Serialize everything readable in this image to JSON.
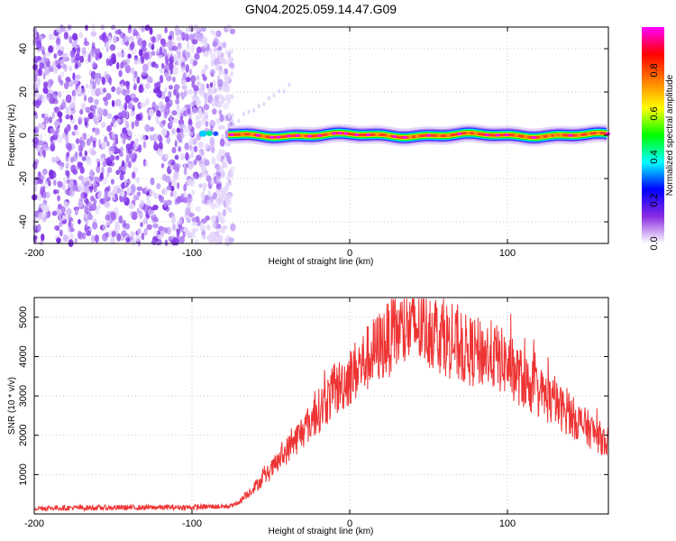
{
  "title": "GN04.2025.059.14.47.G09",
  "chart_data": [
    {
      "type": "heatmap",
      "xlabel": "Height of straight line (km)",
      "ylabel": "Frequency (Hz)",
      "colorbar_label": "Normalized spectral amplitude",
      "xlim": [
        -200,
        164
      ],
      "ylim": [
        -50,
        50
      ],
      "x_ticks": [
        -200,
        -100,
        0,
        100
      ],
      "y_ticks": [
        -40,
        -20,
        0,
        20,
        40
      ],
      "colorbar_range": [
        0.0,
        1.0
      ],
      "colorbar_ticks": [
        0.0,
        0.2,
        0.4,
        0.6,
        0.8
      ],
      "colormap": [
        "#ffffff",
        "#8a2be2",
        "#0000ff",
        "#00ffff",
        "#00ff00",
        "#ffff00",
        "#ff8000",
        "#ff0000",
        "#ff00ff"
      ],
      "regions": [
        {
          "name": "noise",
          "x_range": [
            -200,
            -80
          ],
          "freq_range": [
            -50,
            50
          ],
          "amplitude": [
            0.1,
            0.4
          ]
        },
        {
          "name": "signal",
          "x_range": [
            -90,
            164
          ],
          "center_freq": 0,
          "amplitude": [
            0.8,
            1.0
          ]
        }
      ],
      "grid": true
    },
    {
      "type": "line",
      "xlabel": "Height of straight line (km)",
      "ylabel": "SNR (10 * v/v)",
      "xlim": [
        -200,
        164
      ],
      "ylim": [
        0,
        5500
      ],
      "x_ticks": [
        -200,
        -100,
        0,
        100
      ],
      "y_ticks": [
        1000,
        2000,
        3000,
        4000,
        5000
      ],
      "grid": true,
      "series": [
        {
          "color": "#ee3333",
          "envelope": {
            "x": [
              -200,
              -150,
              -100,
              -75,
              -70,
              -60,
              -50,
              -40,
              -30,
              -20,
              -10,
              0,
              10,
              20,
              30,
              40,
              50,
              60,
              70,
              80,
              90,
              100,
              110,
              120,
              130,
              140,
              150,
              160,
              164
            ],
            "y": [
              150,
              160,
              170,
              200,
              300,
              700,
              1100,
              1600,
              2100,
              2600,
              3100,
              3500,
              3900,
              4300,
              4600,
              4750,
              4750,
              4500,
              4200,
              4100,
              4050,
              3800,
              3400,
              3100,
              2800,
              2500,
              2200,
              1900,
              1800
            ]
          }
        }
      ]
    }
  ]
}
